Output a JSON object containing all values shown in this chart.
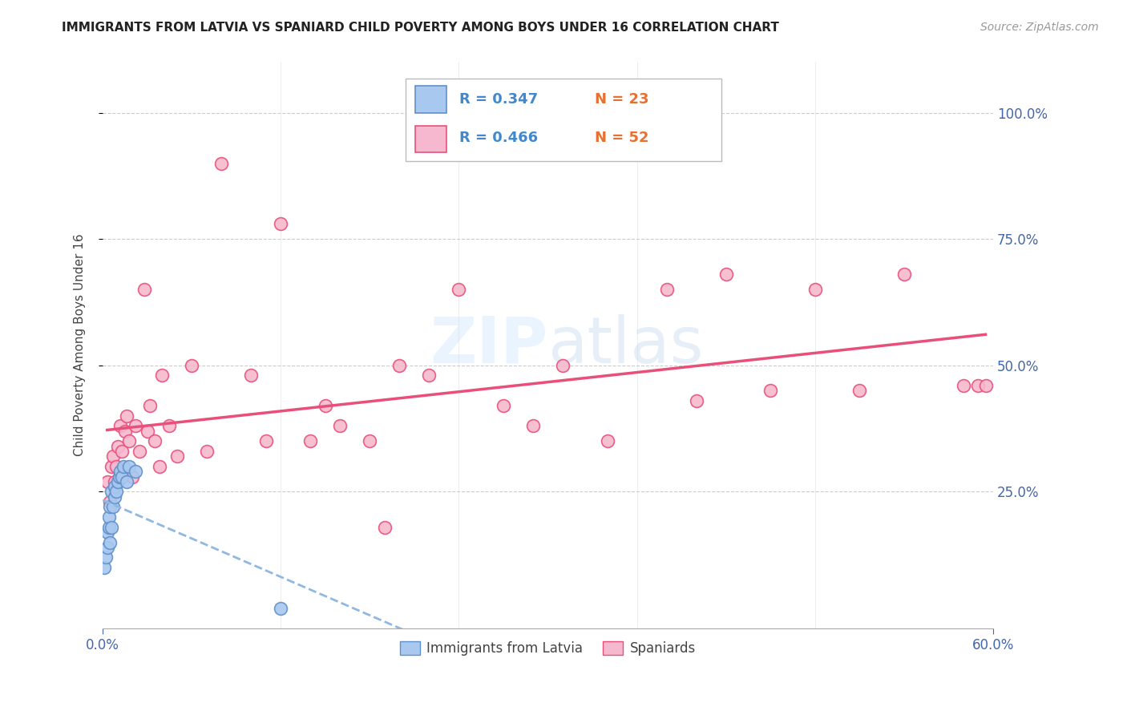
{
  "title": "IMMIGRANTS FROM LATVIA VS SPANIARD CHILD POVERTY AMONG BOYS UNDER 16 CORRELATION CHART",
  "source": "Source: ZipAtlas.com",
  "ylabel": "Child Poverty Among Boys Under 16",
  "ytick_labels": [
    "100.0%",
    "75.0%",
    "50.0%",
    "25.0%"
  ],
  "ytick_vals": [
    1.0,
    0.75,
    0.5,
    0.25
  ],
  "xlim": [
    0.0,
    0.6
  ],
  "ylim": [
    -0.02,
    1.1
  ],
  "legend_r1": "R = 0.347",
  "legend_n1": "N = 23",
  "legend_r2": "R = 0.466",
  "legend_n2": "N = 52",
  "color_latvia": "#a8c8f0",
  "color_spaniard": "#f5b8ce",
  "color_latvia_edge": "#6090c8",
  "color_spaniard_edge": "#e8507a",
  "color_latvia_line": "#90b8e0",
  "color_spaniard_line": "#e8507a",
  "color_r_blue": "#4488cc",
  "color_n_orange": "#e87030",
  "axis_label_color": "#4466aa",
  "grid_color": "#cccccc",
  "latvia_x": [
    0.001,
    0.002,
    0.003,
    0.003,
    0.004,
    0.004,
    0.005,
    0.005,
    0.006,
    0.006,
    0.007,
    0.008,
    0.008,
    0.009,
    0.01,
    0.011,
    0.012,
    0.013,
    0.014,
    0.016,
    0.018,
    0.022,
    0.12
  ],
  "latvia_y": [
    0.1,
    0.12,
    0.14,
    0.17,
    0.18,
    0.2,
    0.15,
    0.22,
    0.18,
    0.25,
    0.22,
    0.24,
    0.26,
    0.25,
    0.27,
    0.28,
    0.29,
    0.28,
    0.3,
    0.27,
    0.3,
    0.29,
    0.02
  ],
  "spaniard_x": [
    0.003,
    0.005,
    0.006,
    0.007,
    0.008,
    0.009,
    0.01,
    0.011,
    0.012,
    0.013,
    0.015,
    0.016,
    0.018,
    0.02,
    0.022,
    0.025,
    0.028,
    0.03,
    0.032,
    0.035,
    0.038,
    0.04,
    0.045,
    0.05,
    0.06,
    0.07,
    0.08,
    0.1,
    0.11,
    0.12,
    0.14,
    0.15,
    0.16,
    0.18,
    0.19,
    0.2,
    0.22,
    0.24,
    0.27,
    0.29,
    0.31,
    0.34,
    0.38,
    0.4,
    0.42,
    0.45,
    0.48,
    0.51,
    0.54,
    0.58,
    0.59,
    0.595
  ],
  "spaniard_y": [
    0.27,
    0.23,
    0.3,
    0.32,
    0.27,
    0.3,
    0.34,
    0.28,
    0.38,
    0.33,
    0.37,
    0.4,
    0.35,
    0.28,
    0.38,
    0.33,
    0.65,
    0.37,
    0.42,
    0.35,
    0.3,
    0.48,
    0.38,
    0.32,
    0.5,
    0.33,
    0.9,
    0.48,
    0.35,
    0.78,
    0.35,
    0.42,
    0.38,
    0.35,
    0.18,
    0.5,
    0.48,
    0.65,
    0.42,
    0.38,
    0.5,
    0.35,
    0.65,
    0.43,
    0.68,
    0.45,
    0.65,
    0.45,
    0.68,
    0.46,
    0.46,
    0.46
  ]
}
